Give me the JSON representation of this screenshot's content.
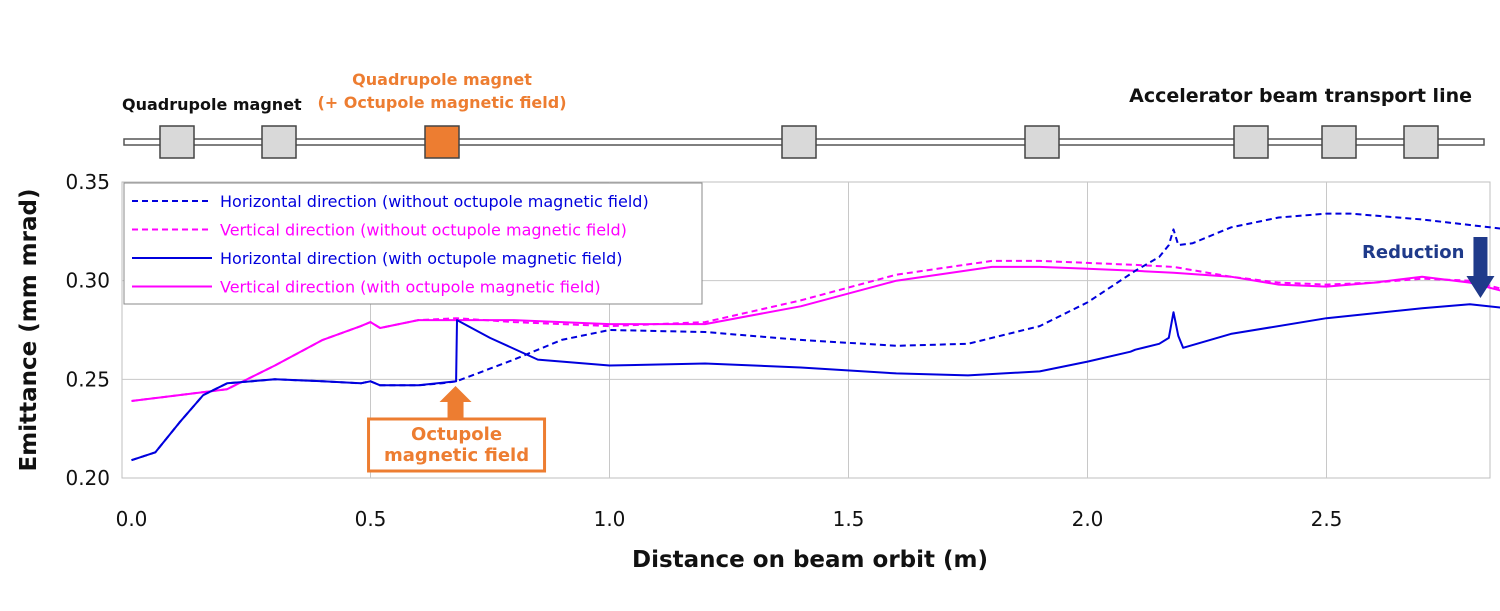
{
  "beamline": {
    "title": "Accelerator beam transport line",
    "quad_label": "Quadrupole magnet",
    "octupole_label_line1": "Quadrupole magnet",
    "octupole_label_line2": "(+ Octupole magnetic field)",
    "colors": {
      "quad": "#d9d9d9",
      "octupole": "#ed7d31"
    }
  },
  "annotations": {
    "octupole_line1": "Octupole",
    "octupole_line2": "magnetic field",
    "octupole_x": 0.68,
    "reduction": "Reduction",
    "reduction_x": 2.82,
    "colors": {
      "octupole": "#ed7d31",
      "reduction": "#1f3a8a"
    }
  },
  "chart_data": {
    "type": "line",
    "xlabel": "Distance on beam orbit (m)",
    "ylabel": "Emittance (mm mrad)",
    "xlim": [
      0,
      2.88
    ],
    "ylim": [
      0.2,
      0.35
    ],
    "xticks": [
      "0.0",
      "0.5",
      "1.0",
      "1.5",
      "2.0",
      "2.5"
    ],
    "yticks": [
      "0.20",
      "0.25",
      "0.30",
      "0.35"
    ],
    "grid": true,
    "legend_position": "top-left",
    "series": [
      {
        "name": "Horizontal direction (without octupole magnetic field)",
        "color": "#0000dd",
        "dash": true,
        "x": [
          0.0,
          0.05,
          0.1,
          0.15,
          0.2,
          0.3,
          0.4,
          0.48,
          0.5,
          0.52,
          0.55,
          0.6,
          0.65,
          0.68,
          0.8,
          0.9,
          1.0,
          1.2,
          1.4,
          1.6,
          1.75,
          1.9,
          2.0,
          2.1,
          2.15,
          2.17,
          2.18,
          2.19,
          2.22,
          2.3,
          2.4,
          2.5,
          2.55,
          2.7,
          2.88
        ],
        "y": [
          0.209,
          0.213,
          0.228,
          0.242,
          0.248,
          0.25,
          0.249,
          0.248,
          0.249,
          0.247,
          0.247,
          0.247,
          0.248,
          0.249,
          0.26,
          0.27,
          0.275,
          0.274,
          0.27,
          0.267,
          0.268,
          0.277,
          0.289,
          0.305,
          0.312,
          0.318,
          0.326,
          0.318,
          0.319,
          0.327,
          0.332,
          0.334,
          0.334,
          0.331,
          0.326
        ]
      },
      {
        "name": "Vertical direction (without octupole magnetic field)",
        "color": "#ff00ff",
        "dash": true,
        "x": [
          0.0,
          0.1,
          0.2,
          0.3,
          0.4,
          0.48,
          0.5,
          0.52,
          0.6,
          0.68,
          0.8,
          1.0,
          1.2,
          1.4,
          1.6,
          1.8,
          1.9,
          2.0,
          2.1,
          2.18,
          2.3,
          2.4,
          2.5,
          2.6,
          2.7,
          2.8,
          2.88
        ],
        "y": [
          0.239,
          0.242,
          0.245,
          0.257,
          0.27,
          0.277,
          0.279,
          0.276,
          0.28,
          0.281,
          0.279,
          0.277,
          0.279,
          0.29,
          0.303,
          0.31,
          0.31,
          0.309,
          0.308,
          0.307,
          0.302,
          0.299,
          0.298,
          0.299,
          0.301,
          0.3,
          0.295
        ]
      },
      {
        "name": "Horizontal direction (with octupole magnetic field)",
        "color": "#0000dd",
        "dash": false,
        "x": [
          0.0,
          0.05,
          0.1,
          0.15,
          0.2,
          0.3,
          0.4,
          0.48,
          0.5,
          0.52,
          0.6,
          0.679,
          0.681,
          0.75,
          0.85,
          1.0,
          1.2,
          1.4,
          1.6,
          1.75,
          1.9,
          2.0,
          2.09,
          2.1,
          2.15,
          2.17,
          2.18,
          2.19,
          2.2,
          2.3,
          2.5,
          2.7,
          2.8,
          2.88
        ],
        "y": [
          0.209,
          0.213,
          0.228,
          0.242,
          0.248,
          0.25,
          0.249,
          0.248,
          0.249,
          0.247,
          0.247,
          0.249,
          0.28,
          0.271,
          0.26,
          0.257,
          0.258,
          0.256,
          0.253,
          0.252,
          0.254,
          0.259,
          0.264,
          0.265,
          0.268,
          0.271,
          0.284,
          0.272,
          0.266,
          0.273,
          0.281,
          0.286,
          0.288,
          0.286
        ]
      },
      {
        "name": "Vertical direction (with octupole magnetic field)",
        "color": "#ff00ff",
        "dash": false,
        "x": [
          0.0,
          0.1,
          0.2,
          0.3,
          0.4,
          0.48,
          0.5,
          0.52,
          0.6,
          0.68,
          0.8,
          1.0,
          1.2,
          1.4,
          1.6,
          1.8,
          1.9,
          2.0,
          2.1,
          2.18,
          2.3,
          2.4,
          2.5,
          2.6,
          2.7,
          2.8,
          2.88
        ],
        "y": [
          0.239,
          0.242,
          0.245,
          0.257,
          0.27,
          0.277,
          0.279,
          0.276,
          0.28,
          0.28,
          0.28,
          0.278,
          0.278,
          0.287,
          0.3,
          0.307,
          0.307,
          0.306,
          0.305,
          0.304,
          0.302,
          0.298,
          0.297,
          0.299,
          0.302,
          0.299,
          0.294
        ]
      }
    ]
  }
}
